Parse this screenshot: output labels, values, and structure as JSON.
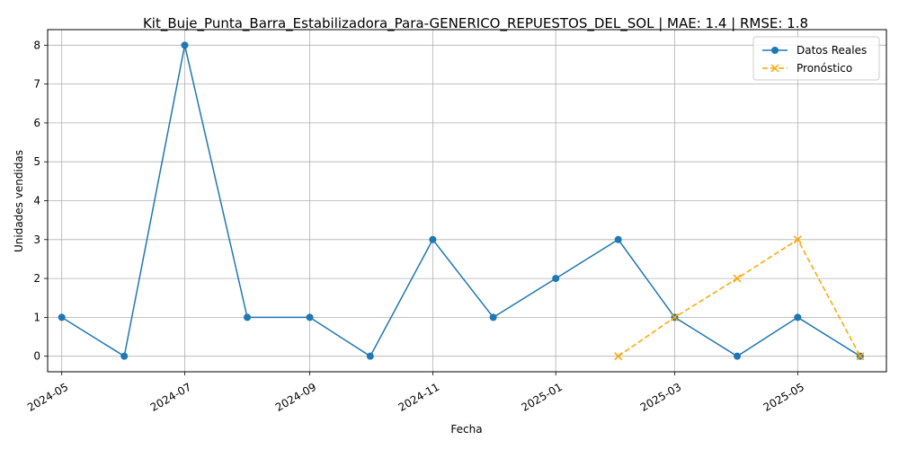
{
  "chart_data": {
    "type": "line",
    "title": "Kit_Buje_Punta_Barra_Estabilizadora_Para-GENERICO_REPUESTOS_DEL_SOL | MAE: 1.4 | RMSE: 1.8",
    "xlabel": "Fecha",
    "ylabel": "Unidades vendidas",
    "x_type": "date",
    "xlim": [
      "2024-04-24",
      "2025-06-14"
    ],
    "ylim": [
      -0.4,
      8.4
    ],
    "grid": true,
    "legend_position": "top-right",
    "x_ticks": [
      "2024-05",
      "2024-07",
      "2024-09",
      "2024-11",
      "2025-01",
      "2025-03",
      "2025-05"
    ],
    "y_ticks": [
      0,
      1,
      2,
      3,
      4,
      5,
      6,
      7,
      8
    ],
    "series": [
      {
        "name": "Datos Reales",
        "color": "#1f77b4",
        "line_style": "solid",
        "marker": "circle",
        "x": [
          "2024-05-01",
          "2024-06-01",
          "2024-07-01",
          "2024-08-01",
          "2024-09-01",
          "2024-10-01",
          "2024-11-01",
          "2024-12-01",
          "2025-01-01",
          "2025-02-01",
          "2025-03-01",
          "2025-04-01",
          "2025-05-01",
          "2025-06-01"
        ],
        "y": [
          1,
          0,
          8,
          1,
          1,
          0,
          3,
          1,
          2,
          3,
          1,
          0,
          1,
          0
        ]
      },
      {
        "name": "Pronóstico",
        "color": "#ffa500",
        "line_style": "dashed",
        "marker": "x",
        "x": [
          "2025-02-01",
          "2025-03-01",
          "2025-04-01",
          "2025-05-01",
          "2025-06-01"
        ],
        "y": [
          0,
          1,
          2,
          3,
          0
        ]
      }
    ]
  }
}
